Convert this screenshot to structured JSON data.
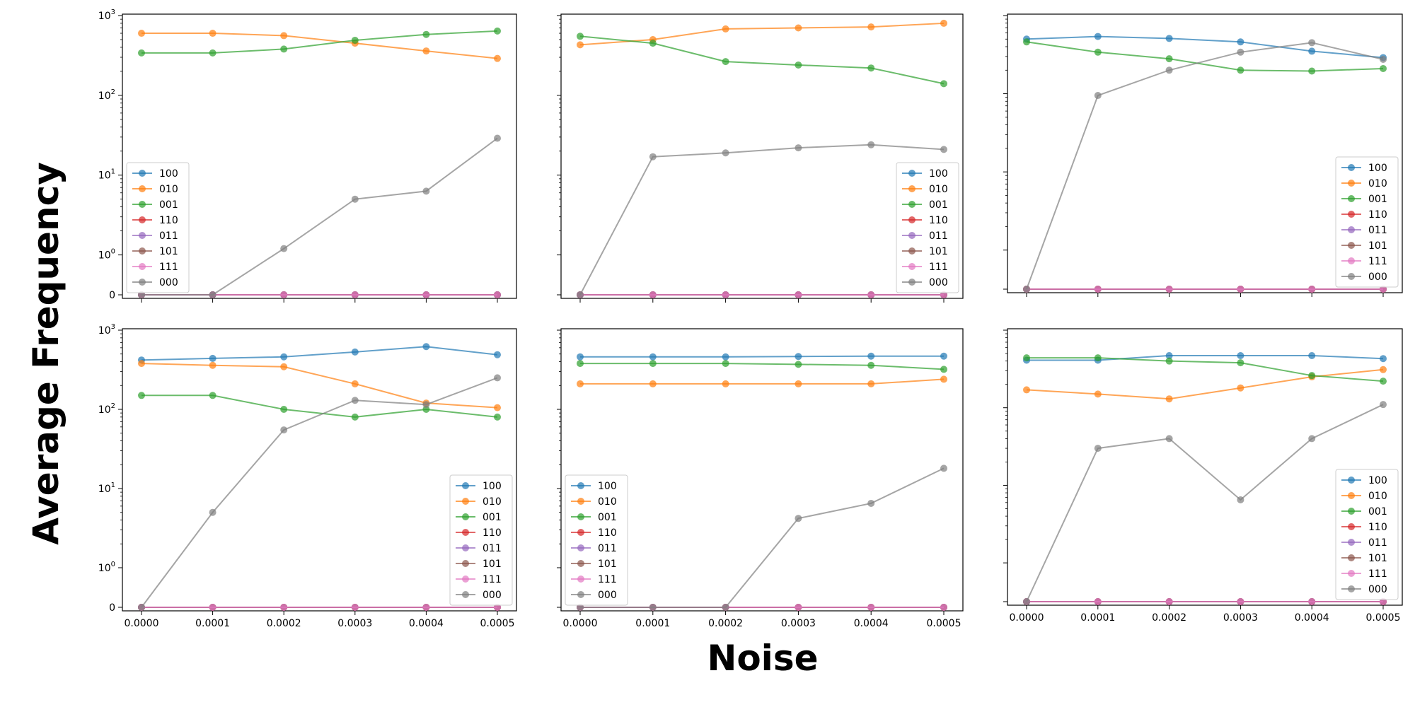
{
  "figure": {
    "ylabel": "Average Frequency",
    "xlabel": "Noise"
  },
  "legend_position": [
    "lower-left",
    "lower-right",
    "lower-right",
    "lower-right",
    "lower-left",
    "lower-right"
  ],
  "colors": {
    "100": "#1f77b4",
    "010": "#ff7f0e",
    "001": "#2ca02c",
    "110": "#d62728",
    "011": "#9467bd",
    "101": "#8c564b",
    "111": "#e377c2",
    "000": "#7f7f7f"
  },
  "chart_data": [
    {
      "type": "line",
      "yscale": "symlog",
      "ylim": [
        0,
        1000
      ],
      "xlim": [
        0,
        0.0005
      ],
      "x": [
        "0.0000",
        "0.0001",
        "0.0002",
        "0.0003",
        "0.0004",
        "0.0005"
      ],
      "yticks": [
        "0",
        "10^0",
        "10^1",
        "10^2",
        "10^3"
      ],
      "series": [
        {
          "name": "100",
          "values": [
            0,
            0,
            0,
            0,
            0,
            0
          ]
        },
        {
          "name": "010",
          "values": [
            600,
            600,
            560,
            450,
            360,
            290
          ]
        },
        {
          "name": "001",
          "values": [
            340,
            340,
            380,
            490,
            580,
            640
          ]
        },
        {
          "name": "110",
          "values": [
            0,
            0,
            0,
            0,
            0,
            0
          ]
        },
        {
          "name": "011",
          "values": [
            0,
            0,
            0,
            0,
            0,
            0
          ]
        },
        {
          "name": "101",
          "values": [
            0,
            0,
            0,
            0,
            0,
            0
          ]
        },
        {
          "name": "111",
          "values": [
            0,
            0,
            0,
            0,
            0,
            0
          ]
        },
        {
          "name": "000",
          "values": [
            0,
            0,
            1.2,
            5,
            6.3,
            29
          ]
        }
      ]
    },
    {
      "type": "line",
      "yscale": "symlog",
      "ylim": [
        0,
        1000
      ],
      "xlim": [
        0,
        0.0005
      ],
      "x": [
        "0.0000",
        "0.0001",
        "0.0002",
        "0.0003",
        "0.0004",
        "0.0005"
      ],
      "series": [
        {
          "name": "100",
          "values": [
            0,
            0,
            0,
            0,
            0,
            0
          ]
        },
        {
          "name": "010",
          "values": [
            430,
            500,
            680,
            700,
            720,
            800
          ]
        },
        {
          "name": "001",
          "values": [
            550,
            450,
            265,
            240,
            220,
            140
          ]
        },
        {
          "name": "110",
          "values": [
            0,
            0,
            0,
            0,
            0,
            0
          ]
        },
        {
          "name": "011",
          "values": [
            0,
            0,
            0,
            0,
            0,
            0
          ]
        },
        {
          "name": "101",
          "values": [
            0,
            0,
            0,
            0,
            0,
            0
          ]
        },
        {
          "name": "111",
          "values": [
            0,
            0,
            0,
            0,
            0,
            0
          ]
        },
        {
          "name": "000",
          "values": [
            0,
            17,
            19,
            22,
            24,
            21
          ]
        }
      ]
    },
    {
      "type": "line",
      "yscale": "symlog",
      "ylim": [
        0,
        1000
      ],
      "xlim": [
        0,
        0.0005
      ],
      "x": [
        "0.0000",
        "0.0001",
        "0.0002",
        "0.0003",
        "0.0004",
        "0.0005"
      ],
      "series": [
        {
          "name": "100",
          "values": [
            500,
            540,
            510,
            460,
            350,
            290
          ]
        },
        {
          "name": "010",
          "values": [
            0,
            0,
            0,
            0,
            0,
            0
          ]
        },
        {
          "name": "001",
          "values": [
            460,
            340,
            280,
            200,
            195,
            210
          ]
        },
        {
          "name": "110",
          "values": [
            0,
            0,
            0,
            0,
            0,
            0
          ]
        },
        {
          "name": "011",
          "values": [
            0,
            0,
            0,
            0,
            0,
            0
          ]
        },
        {
          "name": "101",
          "values": [
            0,
            0,
            0,
            0,
            0,
            0
          ]
        },
        {
          "name": "111",
          "values": [
            0,
            0,
            0,
            0,
            0,
            0
          ]
        },
        {
          "name": "000",
          "values": [
            0,
            95,
            200,
            340,
            450,
            275
          ]
        }
      ]
    },
    {
      "type": "line",
      "yscale": "symlog",
      "ylim": [
        0,
        1000
      ],
      "xlim": [
        0,
        0.0005
      ],
      "x": [
        "0.0000",
        "0.0001",
        "0.0002",
        "0.0003",
        "0.0004",
        "0.0005"
      ],
      "yticks": [
        "0",
        "10^0",
        "10^1",
        "10^2",
        "10^3"
      ],
      "series": [
        {
          "name": "100",
          "values": [
            420,
            440,
            460,
            530,
            620,
            490
          ]
        },
        {
          "name": "010",
          "values": [
            380,
            360,
            345,
            210,
            120,
            105
          ]
        },
        {
          "name": "001",
          "values": [
            150,
            150,
            100,
            80,
            100,
            80
          ]
        },
        {
          "name": "110",
          "values": [
            0,
            0,
            0,
            0,
            0,
            0
          ]
        },
        {
          "name": "011",
          "values": [
            0,
            0,
            0,
            0,
            0,
            0
          ]
        },
        {
          "name": "101",
          "values": [
            0,
            0,
            0,
            0,
            0,
            0
          ]
        },
        {
          "name": "111",
          "values": [
            0,
            0,
            0,
            0,
            0,
            0
          ]
        },
        {
          "name": "000",
          "values": [
            0,
            5,
            55,
            130,
            115,
            250
          ]
        }
      ]
    },
    {
      "type": "line",
      "yscale": "symlog",
      "ylim": [
        0,
        1000
      ],
      "xlim": [
        0,
        0.0005
      ],
      "x": [
        "0.0000",
        "0.0001",
        "0.0002",
        "0.0003",
        "0.0004",
        "0.0005"
      ],
      "series": [
        {
          "name": "100",
          "values": [
            460,
            460,
            460,
            465,
            470,
            470
          ]
        },
        {
          "name": "010",
          "values": [
            210,
            210,
            210,
            210,
            210,
            240
          ]
        },
        {
          "name": "001",
          "values": [
            380,
            380,
            380,
            370,
            360,
            320
          ]
        },
        {
          "name": "110",
          "values": [
            0,
            0,
            0,
            0,
            0,
            0
          ]
        },
        {
          "name": "011",
          "values": [
            0,
            0,
            0,
            0,
            0,
            0
          ]
        },
        {
          "name": "101",
          "values": [
            0,
            0,
            0,
            0,
            0,
            0
          ]
        },
        {
          "name": "111",
          "values": [
            0,
            0,
            0,
            0,
            0,
            0
          ]
        },
        {
          "name": "000",
          "values": [
            0,
            0,
            0,
            4.2,
            6.5,
            18
          ]
        }
      ]
    },
    {
      "type": "line",
      "yscale": "symlog",
      "ylim": [
        0,
        1000
      ],
      "xlim": [
        0,
        0.0005
      ],
      "x": [
        "0.0000",
        "0.0001",
        "0.0002",
        "0.0003",
        "0.0004",
        "0.0005"
      ],
      "series": [
        {
          "name": "100",
          "values": [
            410,
            410,
            470,
            470,
            470,
            430
          ]
        },
        {
          "name": "010",
          "values": [
            170,
            150,
            130,
            180,
            250,
            310
          ]
        },
        {
          "name": "001",
          "values": [
            440,
            440,
            400,
            380,
            260,
            220
          ]
        },
        {
          "name": "110",
          "values": [
            0,
            0,
            0,
            0,
            0,
            0
          ]
        },
        {
          "name": "011",
          "values": [
            0,
            0,
            0,
            0,
            0,
            0
          ]
        },
        {
          "name": "101",
          "values": [
            0,
            0,
            0,
            0,
            0,
            0
          ]
        },
        {
          "name": "111",
          "values": [
            0,
            0,
            0,
            0,
            0,
            0
          ]
        },
        {
          "name": "000",
          "values": [
            0,
            30,
            40,
            6.5,
            40,
            110
          ]
        }
      ]
    }
  ]
}
